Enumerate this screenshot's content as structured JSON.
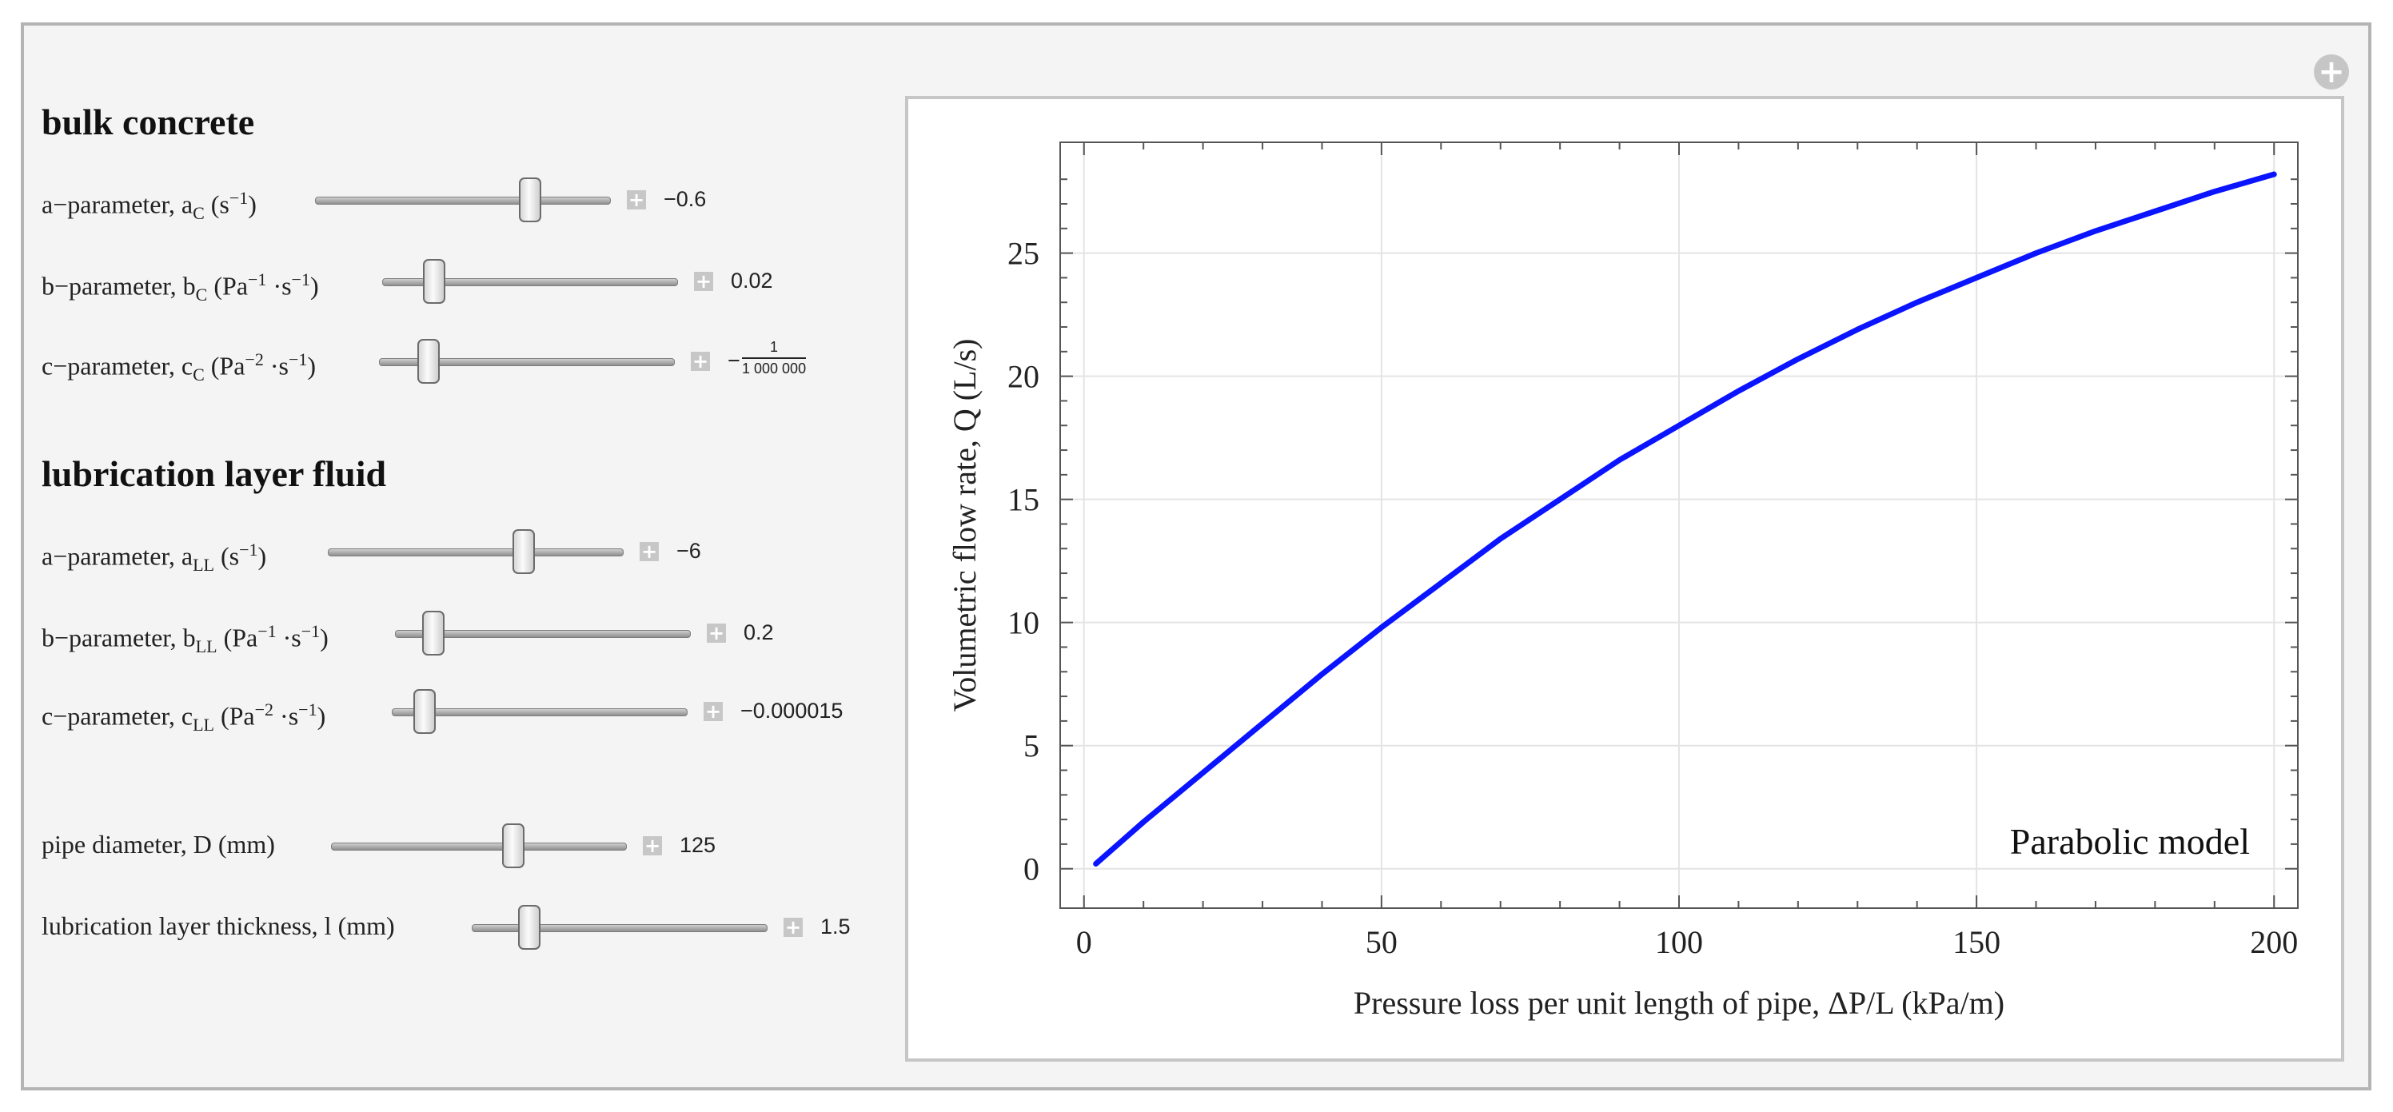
{
  "sections": {
    "bulk": "bulk concrete",
    "lubrication": "lubrication layer fluid"
  },
  "controls": [
    {
      "label_pre": "a−parameter, a",
      "label_sub": "C",
      "label_mid": " (s",
      "label_sup": "−1",
      "label_post": ")",
      "value": "−0.6",
      "level": 0.75
    },
    {
      "label_pre": "b−parameter, b",
      "label_sub": "C",
      "label_mid": " (Pa",
      "label_sup": "−1",
      "label_mid2": " ·s",
      "label_sup2": "−1",
      "label_post": ")",
      "value": "0.02",
      "level": 0.15
    },
    {
      "label_pre": "c−parameter, c",
      "label_sub": "C",
      "label_mid": " (Pa",
      "label_sup": "−2",
      "label_mid2": " ·s",
      "label_sup2": "−1",
      "label_post": ")",
      "value_num": "1",
      "value_den": "1 000 000",
      "value_sign": "−",
      "level": 0.14
    },
    {
      "label_pre": "a−parameter, a",
      "label_sub": "LL",
      "label_mid": " (s",
      "label_sup": "−1",
      "label_post": ")",
      "value": "−6",
      "level": 0.68
    },
    {
      "label_pre": "b−parameter, b",
      "label_sub": "LL",
      "label_mid": " (Pa",
      "label_sup": "−1",
      "label_mid2": " ·s",
      "label_sup2": "−1",
      "label_post": ")",
      "value": "0.2",
      "level": 0.1
    },
    {
      "label_pre": "c−parameter, c",
      "label_sub": "LL",
      "label_mid": " (Pa",
      "label_sup": "−2",
      "label_mid2": " ·s",
      "label_sup2": "−1",
      "label_post": ")",
      "value": "−0.000015",
      "level": 0.08
    },
    {
      "label_pre": "pipe diameter, D (mm)",
      "value": "125",
      "level": 0.63
    },
    {
      "label_pre": "lubrication layer thickness, l (mm)",
      "value": "1.5",
      "level": 0.17
    }
  ],
  "chart_data": {
    "type": "line",
    "annotation": "Parabolic model",
    "xlabel": "Pressure loss per unit length of pipe, ΔP/L (kPa/m)",
    "ylabel": "Volumetric flow rate, Q (L/s)",
    "xlim": [
      -4,
      204
    ],
    "ylim": [
      -1.6,
      29.5
    ],
    "xticks": [
      0,
      50,
      100,
      150,
      200
    ],
    "yticks": [
      0,
      5,
      10,
      15,
      20,
      25
    ],
    "grid": true,
    "color": "#0a14ff",
    "series": [
      {
        "x": [
          2,
          10,
          20,
          30,
          40,
          50,
          60,
          70,
          80,
          90,
          100,
          110,
          120,
          130,
          140,
          150,
          160,
          170,
          180,
          190,
          200
        ],
        "y": [
          0.2,
          1.9,
          3.9,
          5.9,
          7.9,
          9.8,
          11.6,
          13.4,
          15.0,
          16.6,
          18.0,
          19.4,
          20.7,
          21.9,
          23.0,
          24.0,
          25.0,
          25.9,
          26.7,
          27.5,
          28.2
        ]
      }
    ]
  }
}
